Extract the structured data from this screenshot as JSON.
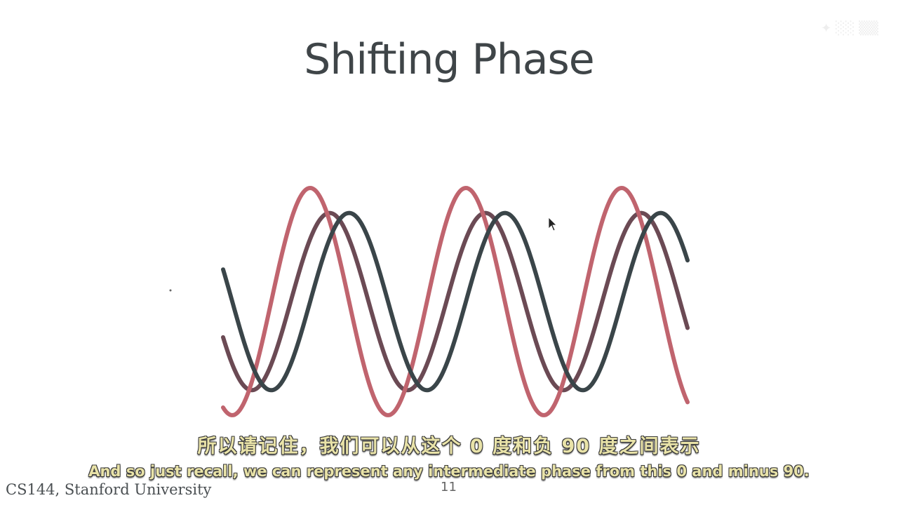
{
  "slide": {
    "title": "Shifting Phase",
    "footer": "CS144, Stanford University",
    "page_number": "11"
  },
  "subtitles": {
    "zh": "所以请记住，我们可以从这个 0 度和负 90 度之间表示",
    "en": "And so just recall, we can represent any intermediate phase from this 0 and minus 90."
  },
  "diagram": {
    "waves": [
      {
        "id": "reference",
        "color": "#c0646e",
        "amplitude": 1.0,
        "phase_deg": 0
      },
      {
        "id": "intermediate",
        "color": "#6b4a54",
        "amplitude": 0.78,
        "phase_deg": -45
      },
      {
        "id": "quadrature",
        "color": "#3a4549",
        "amplitude": 0.78,
        "phase_deg": -90
      }
    ],
    "cycles_shown": 3
  }
}
